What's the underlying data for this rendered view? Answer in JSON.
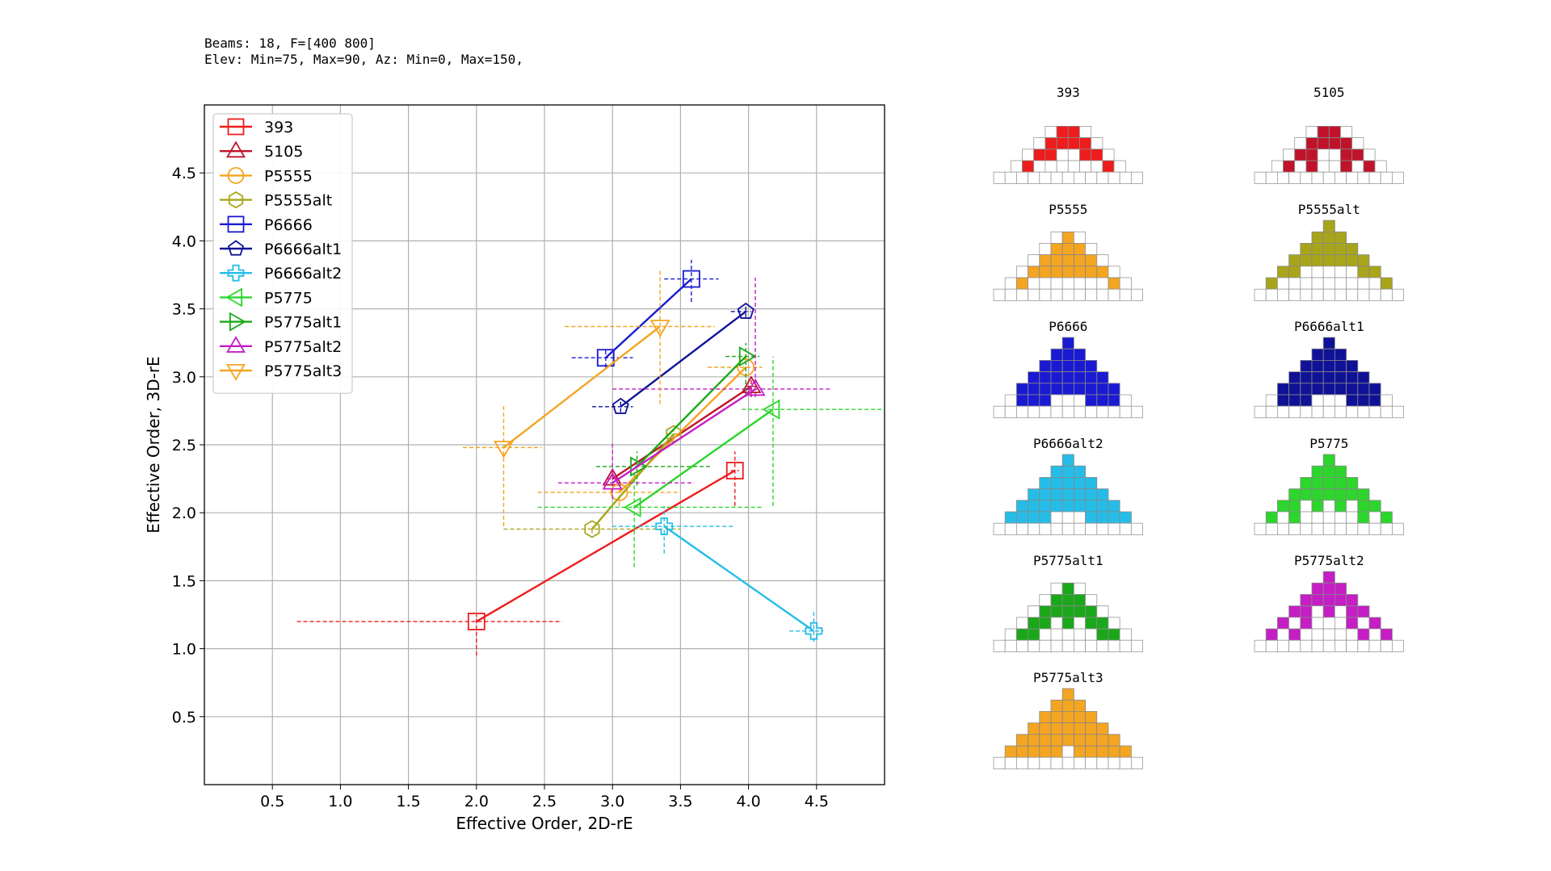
{
  "header": {
    "line1": "Beams: 18, F=[400 800]",
    "line2": "Elev: Min=75, Max=90, Az: Min=0, Max=150,"
  },
  "chart_data": {
    "type": "scatter",
    "xlabel": "Effective Order, 2D-rE",
    "ylabel": "Effective Order, 3D-rE",
    "xlim": [
      0,
      5.0
    ],
    "ylim": [
      0,
      5.0
    ],
    "xticks": [
      0.5,
      1.0,
      1.5,
      2.0,
      2.5,
      3.0,
      3.5,
      4.0,
      4.5
    ],
    "yticks": [
      0.5,
      1.0,
      1.5,
      2.0,
      2.5,
      3.0,
      3.5,
      4.0,
      4.5
    ],
    "xtick_labels": [
      "0.5",
      "1.0",
      "1.5",
      "2.0",
      "2.5",
      "3.0",
      "3.5",
      "4.0",
      "4.5"
    ],
    "ytick_labels": [
      "0.5",
      "1.0",
      "1.5",
      "2.0",
      "2.5",
      "3.0",
      "3.5",
      "4.0",
      "4.5"
    ],
    "grid": true,
    "legend_position": "upper-left",
    "series": [
      {
        "name": "393",
        "color": "#ee1c1c",
        "marker": "square",
        "points": [
          {
            "x": 2.0,
            "y": 1.2,
            "xerr": [
              0.68,
              2.63
            ],
            "yerr": [
              0.95,
              1.25
            ]
          },
          {
            "x": 3.9,
            "y": 2.31,
            "xerr": [
              3.87,
              3.93
            ],
            "yerr": [
              2.05,
              2.45
            ]
          }
        ]
      },
      {
        "name": "5105",
        "color": "#c0132a",
        "marker": "triangle-up",
        "points": [
          {
            "x": 3.0,
            "y": 2.25,
            "xerr": [
              2.96,
              3.04
            ],
            "yerr": [
              2.15,
              2.35
            ]
          },
          {
            "x": 4.02,
            "y": 2.93,
            "xerr": [
              3.98,
              4.06
            ],
            "yerr": [
              2.85,
              3.0
            ]
          }
        ]
      },
      {
        "name": "P5555",
        "color": "#f4a521",
        "marker": "circle",
        "points": [
          {
            "x": 3.05,
            "y": 2.15,
            "xerr": [
              2.45,
              3.5
            ],
            "yerr": [
              2.05,
              2.25
            ]
          },
          {
            "x": 3.98,
            "y": 3.07,
            "xerr": [
              3.7,
              4.1
            ],
            "yerr": [
              2.95,
              3.2
            ]
          }
        ]
      },
      {
        "name": "P5555alt",
        "color": "#a8a51a",
        "marker": "hexagon",
        "points": [
          {
            "x": 2.85,
            "y": 1.88,
            "xerr": [
              2.2,
              3.5
            ],
            "yerr": [
              1.85,
              1.9
            ]
          },
          {
            "x": 3.45,
            "y": 2.58,
            "xerr": [
              3.4,
              3.5
            ],
            "yerr": [
              2.55,
              2.62
            ]
          }
        ]
      },
      {
        "name": "P6666",
        "color": "#1a1ad2",
        "marker": "square",
        "points": [
          {
            "x": 2.95,
            "y": 3.14,
            "xerr": [
              2.7,
              3.15
            ],
            "yerr": [
              3.07,
              3.2
            ]
          },
          {
            "x": 3.58,
            "y": 3.72,
            "xerr": [
              3.38,
              3.78
            ],
            "yerr": [
              3.55,
              3.86
            ]
          }
        ]
      },
      {
        "name": "P6666alt1",
        "color": "#0f1296",
        "marker": "pentagon",
        "points": [
          {
            "x": 3.06,
            "y": 2.78,
            "xerr": [
              2.85,
              3.15
            ],
            "yerr": [
              2.74,
              2.82
            ]
          },
          {
            "x": 3.98,
            "y": 3.48,
            "xerr": [
              3.87,
              4.02
            ],
            "yerr": [
              3.44,
              3.52
            ]
          }
        ]
      },
      {
        "name": "P6666alt2",
        "color": "#25bde8",
        "marker": "plus",
        "points": [
          {
            "x": 3.38,
            "y": 1.9,
            "xerr": [
              3.0,
              3.9
            ],
            "yerr": [
              1.7,
              2.05
            ]
          },
          {
            "x": 4.48,
            "y": 1.13,
            "xerr": [
              4.3,
              4.55
            ],
            "yerr": [
              1.05,
              1.28
            ]
          }
        ]
      },
      {
        "name": "P5775",
        "color": "#2cd62c",
        "marker": "triangle-left",
        "points": [
          {
            "x": 3.16,
            "y": 2.04,
            "xerr": [
              2.45,
              4.1
            ],
            "yerr": [
              1.6,
              2.3
            ]
          },
          {
            "x": 4.18,
            "y": 2.76,
            "xerr": [
              3.95,
              4.98
            ],
            "yerr": [
              2.05,
              3.15
            ]
          }
        ]
      },
      {
        "name": "P5775alt1",
        "color": "#1aa81a",
        "marker": "triangle-right",
        "points": [
          {
            "x": 3.18,
            "y": 2.34,
            "xerr": [
              2.88,
              3.72
            ],
            "yerr": [
              2.2,
              2.45
            ]
          },
          {
            "x": 3.98,
            "y": 3.15,
            "xerr": [
              3.83,
              4.08
            ],
            "yerr": [
              2.85,
              3.25
            ]
          }
        ]
      },
      {
        "name": "P5775alt2",
        "color": "#c41ec4",
        "marker": "triangle-up",
        "points": [
          {
            "x": 3.0,
            "y": 2.22,
            "xerr": [
              2.6,
              3.6
            ],
            "yerr": [
              2.1,
              2.52
            ]
          },
          {
            "x": 4.05,
            "y": 2.91,
            "xerr": [
              3.0,
              4.6
            ],
            "yerr": [
              2.85,
              3.73
            ]
          }
        ]
      },
      {
        "name": "P5775alt3",
        "color": "#f4a521",
        "marker": "triangle-down",
        "points": [
          {
            "x": 2.2,
            "y": 2.48,
            "xerr": [
              1.9,
              2.48
            ],
            "yerr": [
              1.9,
              2.8
            ]
          },
          {
            "x": 3.35,
            "y": 3.37,
            "xerr": [
              2.65,
              3.75
            ],
            "yerr": [
              2.8,
              3.78
            ]
          }
        ]
      }
    ]
  },
  "patterns": [
    {
      "name": "393",
      "color": "#ee1c1c",
      "rows": [
        "....##....",
        "...####...",
        "..##..##..",
        ".#......#."
      ]
    },
    {
      "name": "5105",
      "color": "#c0132a",
      "rows": [
        "....##....",
        "...####...",
        "..##..##..",
        ".#.#..#.#."
      ]
    },
    {
      "name": "P5555",
      "color": "#f4a521",
      "rows": [
        ".....#.....",
        "....###....",
        "...#####...",
        "..#######..",
        ".#.......#."
      ]
    },
    {
      "name": "P5555alt",
      "color": "#a8a51a",
      "rows": [
        ".....#.....",
        "....###....",
        "...#####...",
        "..#######..",
        ".##.....##.",
        "#.........#"
      ]
    },
    {
      "name": "P6666",
      "color": "#1a1ad2",
      "rows": [
        ".....#.....",
        "....###....",
        "...#####...",
        "..#######..",
        ".#########.",
        ".###...###."
      ]
    },
    {
      "name": "P6666alt1",
      "color": "#0f1296",
      "rows": [
        ".....#.....",
        "....###....",
        "...#####...",
        "..#######..",
        ".#########.",
        ".###...###."
      ]
    },
    {
      "name": "P6666alt2",
      "color": "#25bde8",
      "rows": [
        ".....#.....",
        "....###....",
        "...#####...",
        "..#######..",
        ".#########.",
        "####...####"
      ]
    },
    {
      "name": "P5775",
      "color": "#2cd62c",
      "rows": [
        ".....#.....",
        "....###....",
        "...#####...",
        "..#######..",
        ".##.#.#.##.",
        "#.#.....#.#"
      ]
    },
    {
      "name": "P5775alt1",
      "color": "#1aa81a",
      "rows": [
        ".....#.....",
        "....###....",
        "...#####...",
        "..##.#.##..",
        ".##.....##."
      ]
    },
    {
      "name": "P5775alt2",
      "color": "#c41ec4",
      "rows": [
        ".....#.....",
        "....###....",
        "...#####...",
        "..##.#.##..",
        ".#.#...#.#.",
        "#.#.....#.#"
      ]
    },
    {
      "name": "P5775alt3",
      "color": "#f4a521",
      "rows": [
        ".....#.....",
        "....###....",
        "...#####...",
        "..#######..",
        ".#########.",
        "#####.#####"
      ]
    }
  ]
}
